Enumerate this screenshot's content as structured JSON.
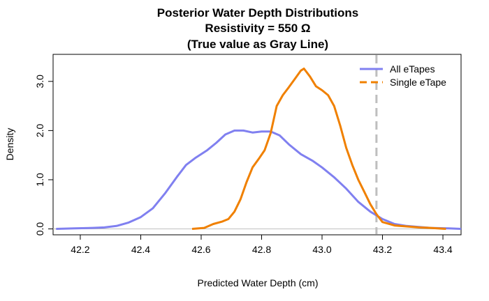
{
  "chart_data": {
    "type": "line",
    "title_lines": [
      "Posterior Water Depth Distributions",
      "Resistivity = 550 Ω",
      "(True value as Gray Line)"
    ],
    "xlabel": "Predicted Water Depth (cm)",
    "ylabel": "Density",
    "xlim": [
      42.11,
      43.46
    ],
    "ylim": [
      -0.12,
      3.55
    ],
    "x_ticks": [
      42.2,
      42.4,
      42.6,
      42.8,
      43.0,
      43.2,
      43.4
    ],
    "x_tick_labels": [
      "42.2",
      "42.4",
      "42.6",
      "42.8",
      "43.0",
      "43.2",
      "43.4"
    ],
    "y_ticks": [
      0,
      1,
      2,
      3
    ],
    "y_tick_labels": [
      "0.0",
      "1.0",
      "2.0",
      "3.0"
    ],
    "true_value": 43.18,
    "true_value_color": "#bebebe",
    "baseline": 0,
    "legend_position": "top-right",
    "series": [
      {
        "name": "All eTapes",
        "color": "#8080f0",
        "dash": "solid",
        "points": [
          [
            42.12,
            0.0
          ],
          [
            42.18,
            0.01
          ],
          [
            42.24,
            0.02
          ],
          [
            42.28,
            0.03
          ],
          [
            42.32,
            0.06
          ],
          [
            42.36,
            0.13
          ],
          [
            42.4,
            0.24
          ],
          [
            42.44,
            0.42
          ],
          [
            42.48,
            0.72
          ],
          [
            42.52,
            1.06
          ],
          [
            42.55,
            1.3
          ],
          [
            42.58,
            1.44
          ],
          [
            42.62,
            1.6
          ],
          [
            42.65,
            1.75
          ],
          [
            42.68,
            1.92
          ],
          [
            42.71,
            2.0
          ],
          [
            42.74,
            2.0
          ],
          [
            42.77,
            1.96
          ],
          [
            42.8,
            1.98
          ],
          [
            42.83,
            1.98
          ],
          [
            42.86,
            1.9
          ],
          [
            42.89,
            1.72
          ],
          [
            42.93,
            1.52
          ],
          [
            42.97,
            1.38
          ],
          [
            43.0,
            1.25
          ],
          [
            43.04,
            1.05
          ],
          [
            43.08,
            0.82
          ],
          [
            43.12,
            0.55
          ],
          [
            43.16,
            0.35
          ],
          [
            43.2,
            0.2
          ],
          [
            43.24,
            0.1
          ],
          [
            43.28,
            0.06
          ],
          [
            43.32,
            0.04
          ],
          [
            43.36,
            0.02
          ],
          [
            43.42,
            0.01
          ],
          [
            43.46,
            0.0
          ]
        ]
      },
      {
        "name": "Single eTape",
        "color": "#f08000",
        "dash": "dashed",
        "points": [
          [
            42.57,
            0.0
          ],
          [
            42.61,
            0.02
          ],
          [
            42.64,
            0.1
          ],
          [
            42.67,
            0.15
          ],
          [
            42.69,
            0.2
          ],
          [
            42.71,
            0.35
          ],
          [
            42.73,
            0.6
          ],
          [
            42.75,
            0.95
          ],
          [
            42.77,
            1.25
          ],
          [
            42.79,
            1.42
          ],
          [
            42.81,
            1.6
          ],
          [
            42.83,
            1.95
          ],
          [
            42.85,
            2.5
          ],
          [
            42.87,
            2.72
          ],
          [
            42.89,
            2.88
          ],
          [
            42.91,
            3.05
          ],
          [
            42.93,
            3.22
          ],
          [
            42.94,
            3.26
          ],
          [
            42.96,
            3.1
          ],
          [
            42.98,
            2.9
          ],
          [
            43.0,
            2.82
          ],
          [
            43.02,
            2.72
          ],
          [
            43.04,
            2.5
          ],
          [
            43.06,
            2.1
          ],
          [
            43.08,
            1.65
          ],
          [
            43.1,
            1.3
          ],
          [
            43.12,
            1.0
          ],
          [
            43.14,
            0.75
          ],
          [
            43.16,
            0.5
          ],
          [
            43.18,
            0.3
          ],
          [
            43.2,
            0.14
          ],
          [
            43.24,
            0.07
          ],
          [
            43.28,
            0.05
          ],
          [
            43.32,
            0.03
          ],
          [
            43.36,
            0.02
          ],
          [
            43.41,
            0.0
          ]
        ]
      }
    ]
  }
}
